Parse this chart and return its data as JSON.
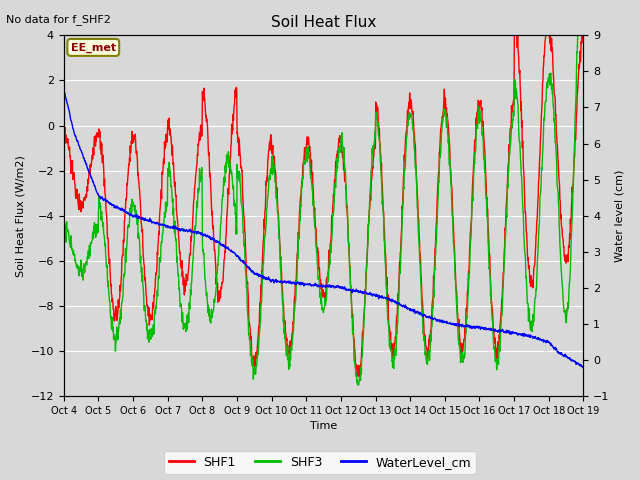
{
  "title": "Soil Heat Flux",
  "title_note": "No data for f_SHF2",
  "ylabel_left": "Soil Heat Flux (W/m2)",
  "ylabel_right": "Water level (cm)",
  "xlabel": "Time",
  "annotation": "EE_met",
  "ylim_left": [
    -12,
    4
  ],
  "ylim_right": [
    -1.0,
    9.0
  ],
  "yticks_left": [
    -12,
    -10,
    -8,
    -6,
    -4,
    -2,
    0,
    2,
    4
  ],
  "yticks_right": [
    -1.0,
    0.0,
    1.0,
    2.0,
    3.0,
    4.0,
    5.0,
    6.0,
    7.0,
    8.0,
    9.0
  ],
  "xtick_labels": [
    "Oct 4",
    "Oct 5",
    "Oct 6",
    "Oct 7",
    "Oct 8",
    "Oct 9",
    "Oct 10",
    "Oct 11",
    "Oct 12",
    "Oct 13",
    "Oct 14",
    "Oct 15",
    "Oct 16",
    "Oct 17",
    "Oct 18",
    "Oct 19"
  ],
  "color_SHF1": "#ff0000",
  "color_SHF3": "#00bb00",
  "color_water": "#0000ff",
  "background_color": "#d8d8d8",
  "plot_bg_color": "#d8d8d8",
  "linewidth": 1.0,
  "figsize": [
    6.4,
    4.8
  ],
  "dpi": 100
}
